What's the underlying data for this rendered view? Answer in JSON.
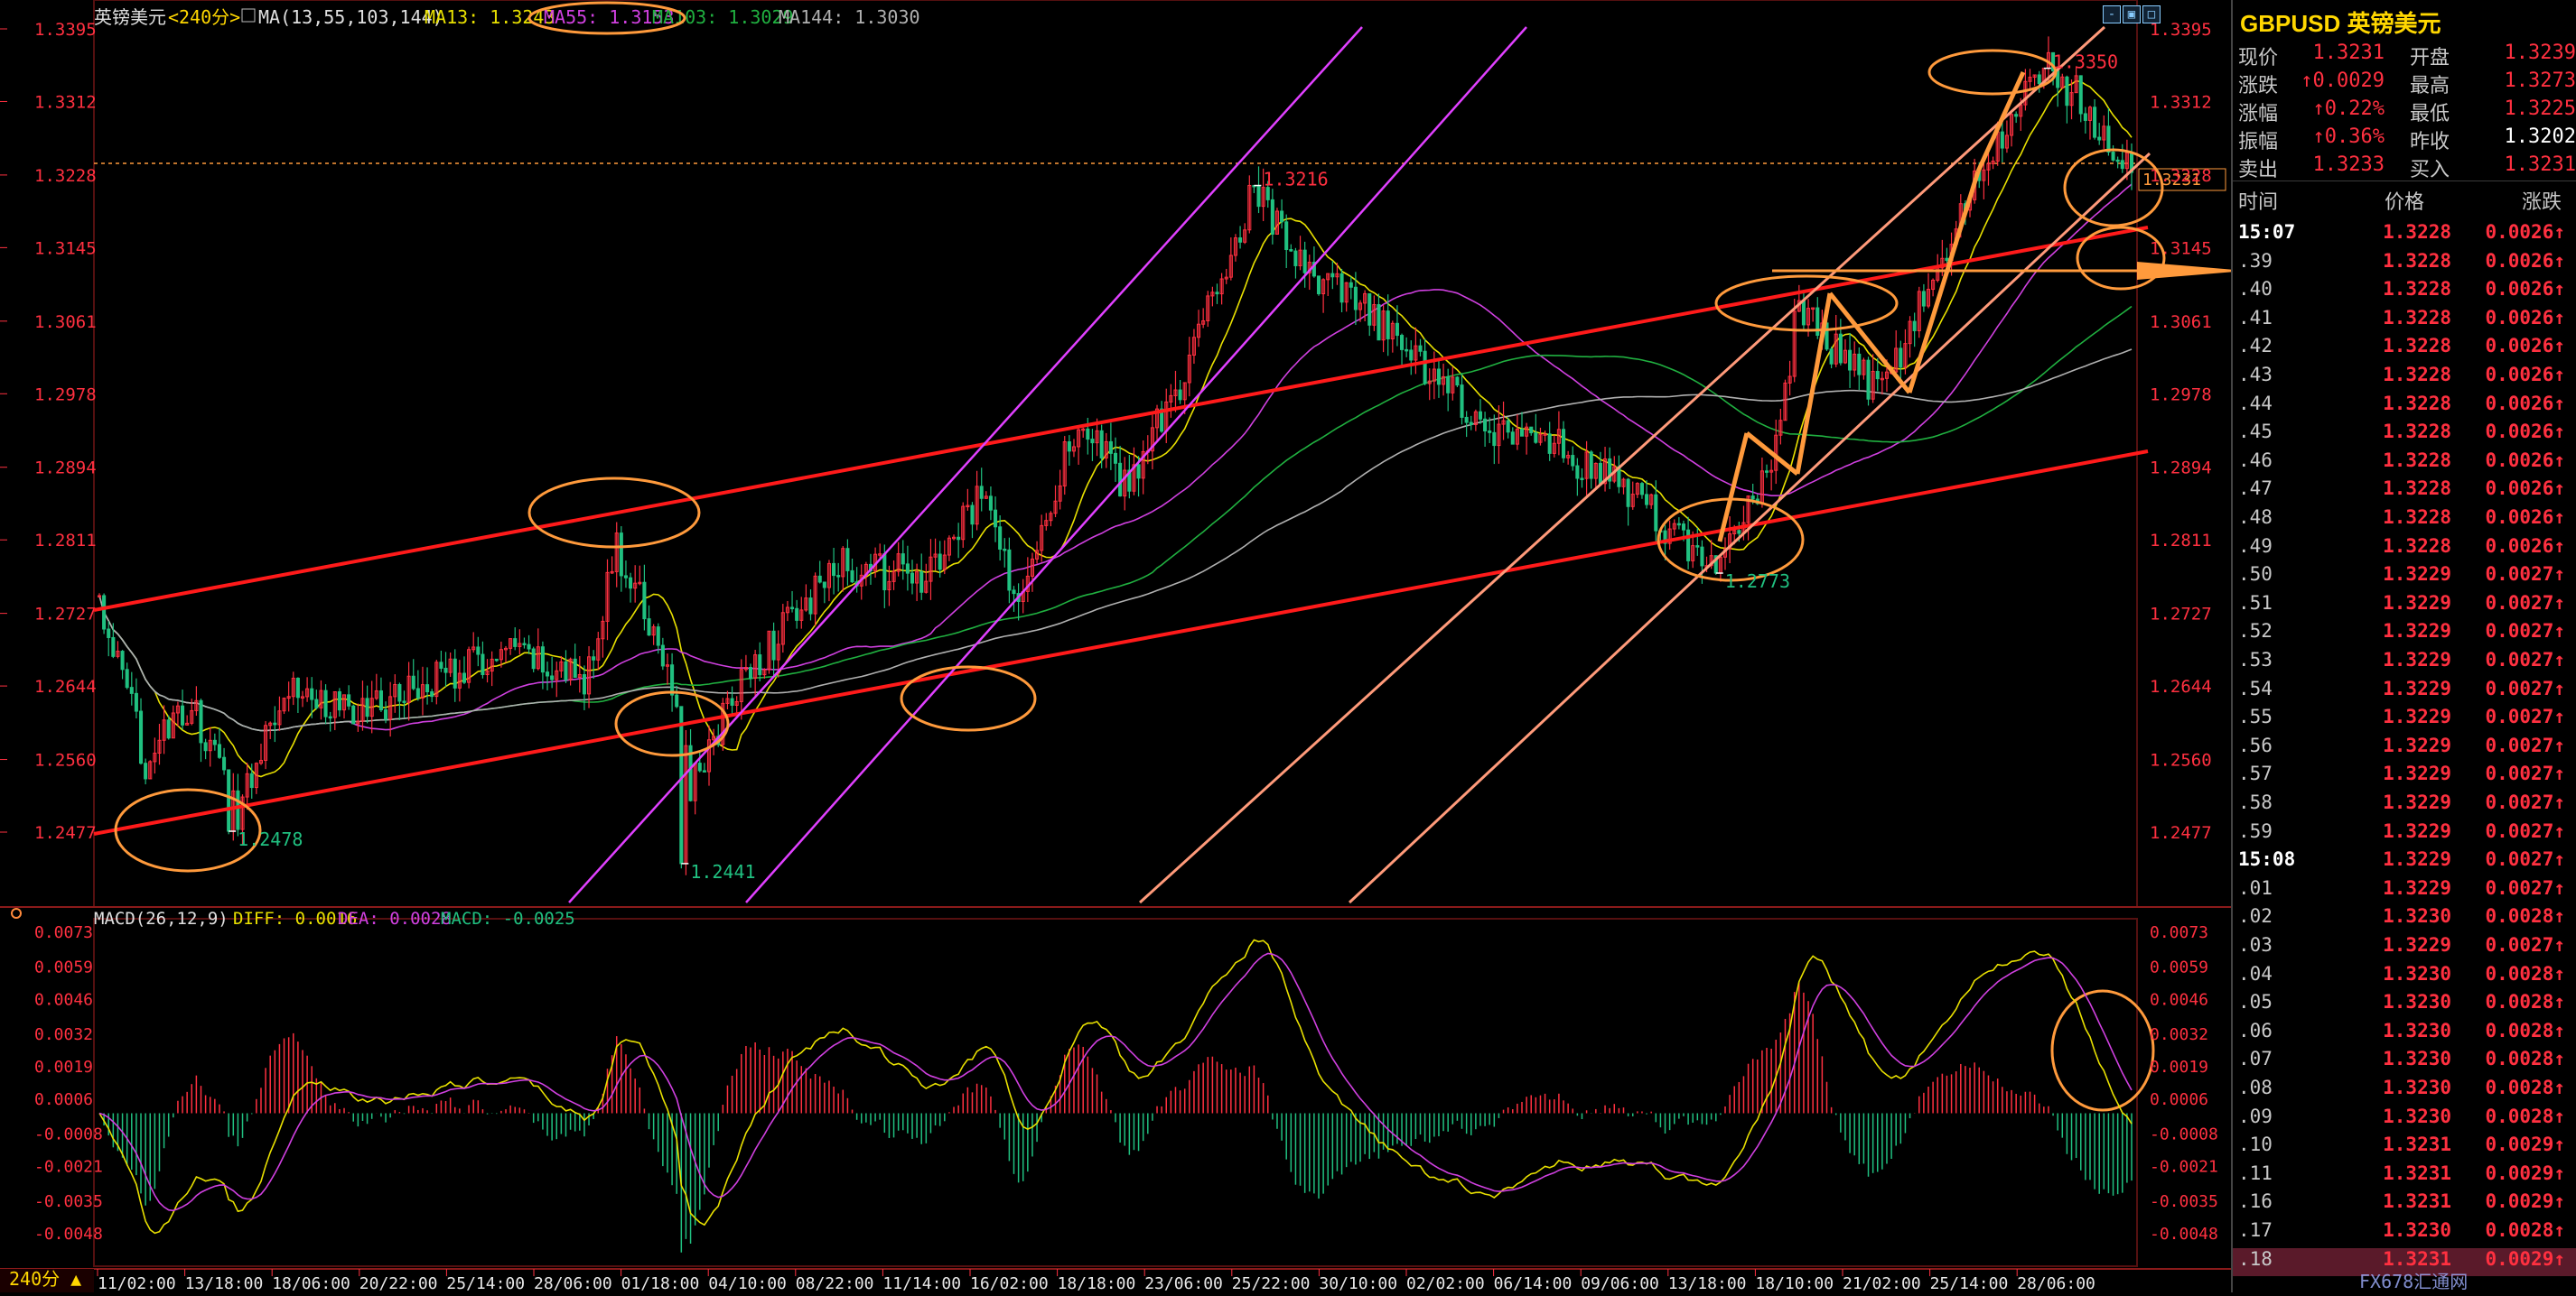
{
  "header": {
    "symbol": "英镑美元",
    "period": "<240分>",
    "ma_def": "MA(13,55,103,144)",
    "ma13": "MA13: 1.3243",
    "ma55": "MA55: 1.3153",
    "ma103": "MA103: 1.3029",
    "ma144": "MA144: 1.3030"
  },
  "macd_header": {
    "def": "MACD(26,12,9)",
    "diff": "DIFF: 0.0016",
    "dea": "DEA: 0.0028",
    "macd": "MACD: -0.0025"
  },
  "period_button": "240分 ▲",
  "colors": {
    "up": "#ff3040",
    "down": "#20c080",
    "ma13": "#e8e000",
    "ma55": "#d040e0",
    "ma103": "#20b040",
    "ma144": "#b0b0b0",
    "channel": "#ff1a1a",
    "channel_light": "#ff9a7a",
    "magenta": "#e040ff",
    "annot": "#ff9a3c"
  },
  "chart_data": {
    "type": "candlestick",
    "y_ticks": [
      "1.3395",
      "1.3312",
      "1.3228",
      "1.3145",
      "1.3061",
      "1.2978",
      "1.2894",
      "1.2811",
      "1.2727",
      "1.2644",
      "1.2560",
      "1.2477"
    ],
    "ylim": [
      1.242,
      1.342
    ],
    "x_ticks": [
      "11/02:00",
      "13/18:00",
      "18/06:00",
      "20/22:00",
      "25/14:00",
      "28/06:00",
      "01/18:00",
      "04/10:00",
      "08/22:00",
      "11/14:00",
      "16/02:00",
      "18/18:00",
      "23/06:00",
      "25/22:00",
      "30/10:00",
      "02/02:00",
      "06/14:00",
      "09/06:00",
      "13/18:00",
      "18/10:00",
      "21/02:00",
      "25/14:00",
      "28/06:00"
    ],
    "annotations": [
      {
        "label": "1.2478",
        "x": 28,
        "y": 1.2478
      },
      {
        "label": "1.2441",
        "x": 126,
        "y": 1.2441
      },
      {
        "label": "1.3216",
        "x": 250,
        "y": 1.3216
      },
      {
        "label": "1.2773",
        "x": 350,
        "y": 1.2773
      },
      {
        "label": "1.3350",
        "x": 421,
        "y": 1.335
      }
    ],
    "current_price": "1.3231",
    "macd_ticks": [
      "0.0073",
      "0.0059",
      "0.0046",
      "0.0032",
      "0.0019",
      "0.0006",
      "-0.0008",
      "-0.0021",
      "-0.0035",
      "-0.0048"
    ],
    "macd_ylim": [
      -0.006,
      0.0075
    ],
    "anchors": [
      [
        0,
        1.274
      ],
      [
        10,
        1.256
      ],
      [
        20,
        1.262
      ],
      [
        30,
        1.25
      ],
      [
        40,
        1.265
      ],
      [
        55,
        1.261
      ],
      [
        75,
        1.266
      ],
      [
        90,
        1.268
      ],
      [
        105,
        1.265
      ],
      [
        112,
        1.28
      ],
      [
        122,
        1.268
      ],
      [
        128,
        1.253
      ],
      [
        140,
        1.266
      ],
      [
        160,
        1.278
      ],
      [
        180,
        1.277
      ],
      [
        192,
        1.287
      ],
      [
        198,
        1.274
      ],
      [
        212,
        1.295
      ],
      [
        222,
        1.287
      ],
      [
        235,
        1.3
      ],
      [
        250,
        1.3216
      ],
      [
        260,
        1.312
      ],
      [
        272,
        1.308
      ],
      [
        285,
        1.302
      ],
      [
        300,
        1.294
      ],
      [
        315,
        1.292
      ],
      [
        330,
        1.287
      ],
      [
        350,
        1.2773
      ],
      [
        362,
        1.29
      ],
      [
        368,
        1.308
      ],
      [
        378,
        1.301
      ],
      [
        386,
        1.298
      ],
      [
        398,
        1.312
      ],
      [
        410,
        1.326
      ],
      [
        421,
        1.335
      ],
      [
        428,
        1.332
      ],
      [
        440,
        1.3231
      ]
    ]
  },
  "sidebar": {
    "title": "GBPUSD 英镑美元",
    "quote_rows": [
      {
        "k1": "现价",
        "v1": "1.3231",
        "c1": "#ff3040",
        "k2": "开盘",
        "v2": "1.3239",
        "c2": "#ff3040"
      },
      {
        "k1": "涨跌",
        "v1": "↑0.0029",
        "c1": "#ff3040",
        "k2": "最高",
        "v2": "1.3273",
        "c2": "#ff3040"
      },
      {
        "k1": "涨幅",
        "v1": "↑0.22%",
        "c1": "#ff3040",
        "k2": "最低",
        "v2": "1.3225",
        "c2": "#ff3040"
      },
      {
        "k1": "振幅",
        "v1": "↑0.36%",
        "c1": "#ff3040",
        "k2": "昨收",
        "v2": "1.3202",
        "c2": "#ffffff"
      },
      {
        "k1": "卖出",
        "v1": "1.3233",
        "c1": "#ff3040",
        "k2": "买入",
        "v2": "1.3231",
        "c2": "#ff3040"
      }
    ],
    "tick_header": {
      "time": "时间",
      "price": "价格",
      "change": "涨跌"
    },
    "ticks": [
      {
        "t": "15:07",
        "p": "1.3228",
        "c": "0.0026↑"
      },
      {
        "t": ".39",
        "p": "1.3228",
        "c": "0.0026↑"
      },
      {
        "t": ".40",
        "p": "1.3228",
        "c": "0.0026↑"
      },
      {
        "t": ".41",
        "p": "1.3228",
        "c": "0.0026↑"
      },
      {
        "t": ".42",
        "p": "1.3228",
        "c": "0.0026↑"
      },
      {
        "t": ".43",
        "p": "1.3228",
        "c": "0.0026↑"
      },
      {
        "t": ".44",
        "p": "1.3228",
        "c": "0.0026↑"
      },
      {
        "t": ".45",
        "p": "1.3228",
        "c": "0.0026↑"
      },
      {
        "t": ".46",
        "p": "1.3228",
        "c": "0.0026↑"
      },
      {
        "t": ".47",
        "p": "1.3228",
        "c": "0.0026↑"
      },
      {
        "t": ".48",
        "p": "1.3228",
        "c": "0.0026↑"
      },
      {
        "t": ".49",
        "p": "1.3228",
        "c": "0.0026↑"
      },
      {
        "t": ".50",
        "p": "1.3229",
        "c": "0.0027↑"
      },
      {
        "t": ".51",
        "p": "1.3229",
        "c": "0.0027↑"
      },
      {
        "t": ".52",
        "p": "1.3229",
        "c": "0.0027↑"
      },
      {
        "t": ".53",
        "p": "1.3229",
        "c": "0.0027↑"
      },
      {
        "t": ".54",
        "p": "1.3229",
        "c": "0.0027↑"
      },
      {
        "t": ".55",
        "p": "1.3229",
        "c": "0.0027↑"
      },
      {
        "t": ".56",
        "p": "1.3229",
        "c": "0.0027↑"
      },
      {
        "t": ".57",
        "p": "1.3229",
        "c": "0.0027↑"
      },
      {
        "t": ".58",
        "p": "1.3229",
        "c": "0.0027↑"
      },
      {
        "t": ".59",
        "p": "1.3229",
        "c": "0.0027↑"
      },
      {
        "t": "15:08",
        "p": "1.3229",
        "c": "0.0027↑"
      },
      {
        "t": ".01",
        "p": "1.3229",
        "c": "0.0027↑"
      },
      {
        "t": ".02",
        "p": "1.3230",
        "c": "0.0028↑"
      },
      {
        "t": ".03",
        "p": "1.3229",
        "c": "0.0027↑"
      },
      {
        "t": ".04",
        "p": "1.3230",
        "c": "0.0028↑"
      },
      {
        "t": ".05",
        "p": "1.3230",
        "c": "0.0028↑"
      },
      {
        "t": ".06",
        "p": "1.3230",
        "c": "0.0028↑"
      },
      {
        "t": ".07",
        "p": "1.3230",
        "c": "0.0028↑"
      },
      {
        "t": ".08",
        "p": "1.3230",
        "c": "0.0028↑"
      },
      {
        "t": ".09",
        "p": "1.3230",
        "c": "0.0028↑"
      },
      {
        "t": ".10",
        "p": "1.3231",
        "c": "0.0029↑"
      },
      {
        "t": ".11",
        "p": "1.3231",
        "c": "0.0029↑"
      },
      {
        "t": ".16",
        "p": "1.3231",
        "c": "0.0029↑"
      },
      {
        "t": ".17",
        "p": "1.3230",
        "c": "0.0028↑"
      },
      {
        "t": ".18",
        "p": "1.3231",
        "c": "0.0029↑"
      }
    ],
    "watermark": "FX678汇通网"
  }
}
